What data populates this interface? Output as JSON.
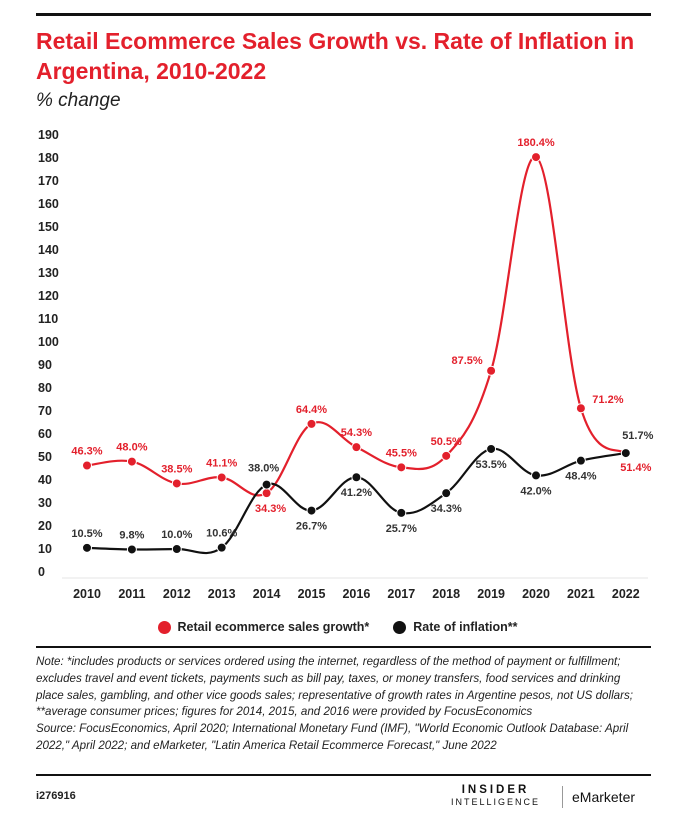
{
  "header": {
    "title": "Retail Ecommerce Sales Growth vs. Rate of Inflation in Argentina, 2010-2022",
    "subtitle": "% change"
  },
  "colors": {
    "ecommerce": "#e3202c",
    "inflation": "#111111",
    "grid": "#e6e6e6"
  },
  "chart_data": {
    "type": "line",
    "title": "Retail Ecommerce Sales Growth vs. Rate of Inflation in Argentina, 2010-2022",
    "subtitle": "% change",
    "xlabel": "",
    "ylabel": "",
    "ylim": [
      0,
      190
    ],
    "yticks": [
      0,
      10,
      20,
      30,
      40,
      50,
      60,
      70,
      80,
      90,
      100,
      110,
      120,
      130,
      140,
      150,
      160,
      170,
      180,
      190
    ],
    "categories": [
      "2010",
      "2011",
      "2012",
      "2013",
      "2014",
      "2015",
      "2016",
      "2017",
      "2018",
      "2019",
      "2020",
      "2021",
      "2022"
    ],
    "grid": false,
    "legend": "bottom",
    "series": [
      {
        "name": "Retail ecommerce sales growth*",
        "color": "#e3202c",
        "values": [
          46.3,
          48.0,
          38.5,
          41.1,
          34.3,
          64.4,
          54.3,
          45.5,
          50.5,
          87.5,
          180.4,
          71.2,
          51.4
        ],
        "labels": [
          "46.3%",
          "48.0%",
          "38.5%",
          "41.1%",
          "34.3%",
          "64.4%",
          "54.3%",
          "45.5%",
          "50.5%",
          "87.5%",
          "180.4%",
          "71.2%",
          "51.4%"
        ]
      },
      {
        "name": "Rate of inflation**",
        "color": "#111111",
        "values": [
          10.5,
          9.8,
          10.0,
          10.6,
          38.0,
          26.7,
          41.2,
          25.7,
          34.3,
          53.5,
          42.0,
          48.4,
          51.7
        ],
        "labels": [
          "10.5%",
          "9.8%",
          "10.0%",
          "10.6%",
          "38.0%",
          "26.7%",
          "41.2%",
          "25.7%",
          "34.3%",
          "53.5%",
          "42.0%",
          "48.4%",
          "51.7%"
        ]
      }
    ]
  },
  "legend": {
    "ecommerce_label": "Retail ecommerce sales growth*",
    "inflation_label": "Rate of inflation**"
  },
  "notes": {
    "note": "Note: *includes products or services ordered using the internet, regardless of the method of payment or fulfillment; excludes travel and event tickets, payments such as bill pay, taxes, or money transfers, food services and drinking place sales, gambling, and other vice goods sales; representative of growth rates in Argentine pesos, not US dollars; **average consumer prices; figures for 2014, 2015, and 2016 were provided by FocusEconomics",
    "source": "Source: FocusEconomics, April 2020; International Monetary Fund (IMF), \"World Economic Outlook Database: April 2022,\" April 2022; and eMarketer, \"Latin America Retail Ecommerce Forecast,\" June 2022"
  },
  "footer": {
    "chart_id": "i276916",
    "brand_insider_top": "INSIDER",
    "brand_insider_bottom": "INTELLIGENCE",
    "brand_emarketer": "eMarketer"
  }
}
